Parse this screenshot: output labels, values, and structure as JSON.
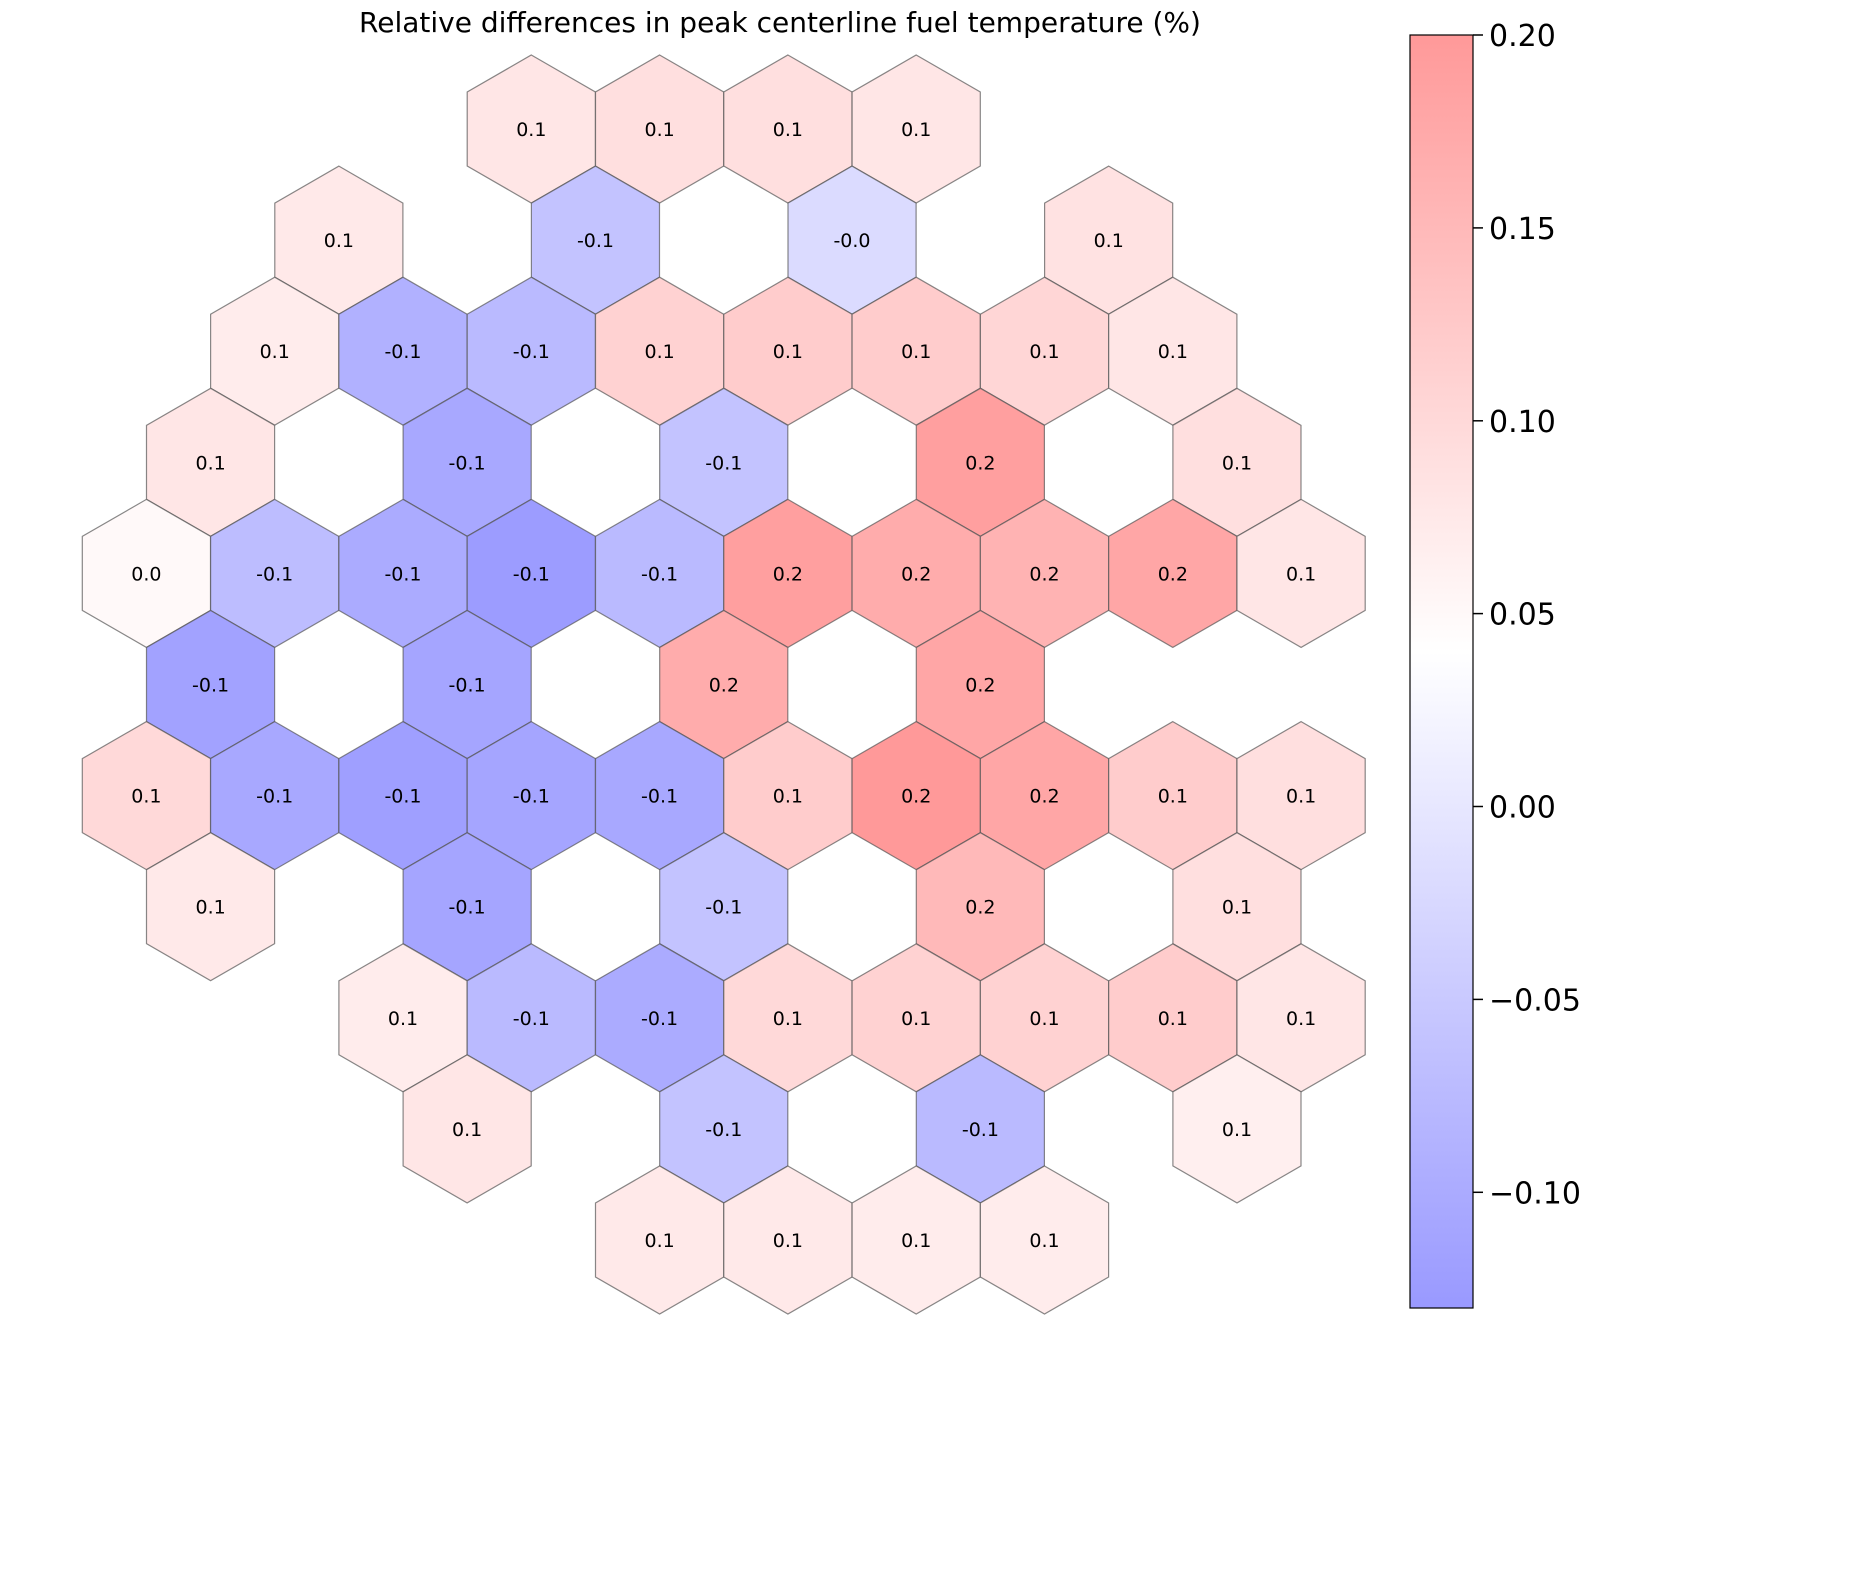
{
  "chart_data": {
    "type": "heatmap",
    "layout": "hexagonal-grid",
    "title": "Relative differences in peak centerline fuel temperature (%)",
    "colorbar": {
      "range": [
        -0.13,
        0.2
      ],
      "ticks": [
        -0.1,
        -0.05,
        0.0,
        0.05,
        0.1,
        0.15,
        0.2
      ],
      "tick_labels": [
        "−0.10",
        "−0.05",
        "0.00",
        "0.05",
        "0.10",
        "0.15",
        "0.20"
      ],
      "placement": "right"
    },
    "colormap": {
      "low": "#9999ff",
      "mid": "#ffffff",
      "high": "#ff9999",
      "mid_value": 0.04
    },
    "cells": [
      {
        "q": 2,
        "r": 0,
        "value": 0.08,
        "label": "0.1"
      },
      {
        "q": 3,
        "r": 0,
        "value": 0.09,
        "label": "0.1"
      },
      {
        "q": 4,
        "r": 0,
        "value": 0.09,
        "label": "0.1"
      },
      {
        "q": 5,
        "r": 0,
        "value": 0.08,
        "label": "0.1"
      },
      {
        "q": 1,
        "r": 1,
        "value": 0.075,
        "label": "0.1"
      },
      {
        "q": 3,
        "r": 1,
        "value": -0.06,
        "label": "-0.1"
      },
      {
        "q": 5,
        "r": 1,
        "value": -0.02,
        "label": "-0.0"
      },
      {
        "q": 7,
        "r": 1,
        "value": 0.085,
        "label": "0.1"
      },
      {
        "q": 0,
        "r": 2,
        "value": 0.07,
        "label": "0.1"
      },
      {
        "q": 1,
        "r": 2,
        "value": -0.09,
        "label": "-0.1"
      },
      {
        "q": 2,
        "r": 2,
        "value": -0.075,
        "label": "-0.1"
      },
      {
        "q": 3,
        "r": 2,
        "value": 0.11,
        "label": "0.1"
      },
      {
        "q": 4,
        "r": 2,
        "value": 0.12,
        "label": "0.1"
      },
      {
        "q": 5,
        "r": 2,
        "value": 0.12,
        "label": "0.1"
      },
      {
        "q": 6,
        "r": 2,
        "value": 0.105,
        "label": "0.1"
      },
      {
        "q": 7,
        "r": 2,
        "value": 0.08,
        "label": "0.1"
      },
      {
        "q": 0,
        "r": 3,
        "value": 0.08,
        "label": "0.1"
      },
      {
        "q": 2,
        "r": 3,
        "value": -0.105,
        "label": "-0.1"
      },
      {
        "q": 4,
        "r": 3,
        "value": -0.06,
        "label": "-0.1"
      },
      {
        "q": 6,
        "r": 3,
        "value": 0.19,
        "label": "0.2"
      },
      {
        "q": 8,
        "r": 3,
        "value": 0.09,
        "label": "0.1"
      },
      {
        "q": -1,
        "r": 4,
        "value": 0.05,
        "label": "0.0"
      },
      {
        "q": 0,
        "r": 4,
        "value": -0.07,
        "label": "-0.1"
      },
      {
        "q": 1,
        "r": 4,
        "value": -0.1,
        "label": "-0.1"
      },
      {
        "q": 2,
        "r": 4,
        "value": -0.125,
        "label": "-0.1"
      },
      {
        "q": 3,
        "r": 4,
        "value": -0.075,
        "label": "-0.1"
      },
      {
        "q": 4,
        "r": 4,
        "value": 0.19,
        "label": "0.2"
      },
      {
        "q": 5,
        "r": 4,
        "value": 0.17,
        "label": "0.2"
      },
      {
        "q": 6,
        "r": 4,
        "value": 0.16,
        "label": "0.2"
      },
      {
        "q": 7,
        "r": 4,
        "value": 0.18,
        "label": "0.2"
      },
      {
        "q": 8,
        "r": 4,
        "value": 0.08,
        "label": "0.1"
      },
      {
        "q": 0,
        "r": 5,
        "value": -0.115,
        "label": "-0.1"
      },
      {
        "q": 2,
        "r": 5,
        "value": -0.11,
        "label": "-0.1"
      },
      {
        "q": 4,
        "r": 5,
        "value": 0.17,
        "label": "0.2"
      },
      {
        "q": 6,
        "r": 5,
        "value": 0.18,
        "label": "0.2"
      },
      {
        "q": -1,
        "r": 6,
        "value": 0.1,
        "label": "0.1"
      },
      {
        "q": 0,
        "r": 6,
        "value": -0.105,
        "label": "-0.1"
      },
      {
        "q": 1,
        "r": 6,
        "value": -0.12,
        "label": "-0.1"
      },
      {
        "q": 2,
        "r": 6,
        "value": -0.11,
        "label": "-0.1"
      },
      {
        "q": 3,
        "r": 6,
        "value": -0.105,
        "label": "-0.1"
      },
      {
        "q": 4,
        "r": 6,
        "value": 0.12,
        "label": "0.1"
      },
      {
        "q": 5,
        "r": 6,
        "value": 0.2,
        "label": "0.2"
      },
      {
        "q": 6,
        "r": 6,
        "value": 0.18,
        "label": "0.2"
      },
      {
        "q": 7,
        "r": 6,
        "value": 0.12,
        "label": "0.1"
      },
      {
        "q": 8,
        "r": 6,
        "value": 0.09,
        "label": "0.1"
      },
      {
        "q": 0,
        "r": 7,
        "value": 0.075,
        "label": "0.1"
      },
      {
        "q": 2,
        "r": 7,
        "value": -0.11,
        "label": "-0.1"
      },
      {
        "q": 4,
        "r": 7,
        "value": -0.06,
        "label": "-0.1"
      },
      {
        "q": 6,
        "r": 7,
        "value": 0.15,
        "label": "0.2"
      },
      {
        "q": 8,
        "r": 7,
        "value": 0.09,
        "label": "0.1"
      },
      {
        "q": 1,
        "r": 8,
        "value": 0.07,
        "label": "0.1"
      },
      {
        "q": 2,
        "r": 8,
        "value": -0.075,
        "label": "-0.1"
      },
      {
        "q": 3,
        "r": 8,
        "value": -0.1,
        "label": "-0.1"
      },
      {
        "q": 4,
        "r": 8,
        "value": 0.1,
        "label": "0.1"
      },
      {
        "q": 5,
        "r": 8,
        "value": 0.11,
        "label": "0.1"
      },
      {
        "q": 6,
        "r": 8,
        "value": 0.11,
        "label": "0.1"
      },
      {
        "q": 7,
        "r": 8,
        "value": 0.12,
        "label": "0.1"
      },
      {
        "q": 8,
        "r": 8,
        "value": 0.08,
        "label": "0.1"
      },
      {
        "q": 2,
        "r": 9,
        "value": 0.08,
        "label": "0.1"
      },
      {
        "q": 4,
        "r": 9,
        "value": -0.06,
        "label": "-0.1"
      },
      {
        "q": 6,
        "r": 9,
        "value": -0.075,
        "label": "-0.1"
      },
      {
        "q": 8,
        "r": 9,
        "value": 0.065,
        "label": "0.1"
      },
      {
        "q": 3,
        "r": 10,
        "value": 0.075,
        "label": "0.1"
      },
      {
        "q": 4,
        "r": 10,
        "value": 0.075,
        "label": "0.1"
      },
      {
        "q": 5,
        "r": 10,
        "value": 0.07,
        "label": "0.1"
      },
      {
        "q": 6,
        "r": 10,
        "value": 0.07,
        "label": "0.1"
      }
    ]
  }
}
